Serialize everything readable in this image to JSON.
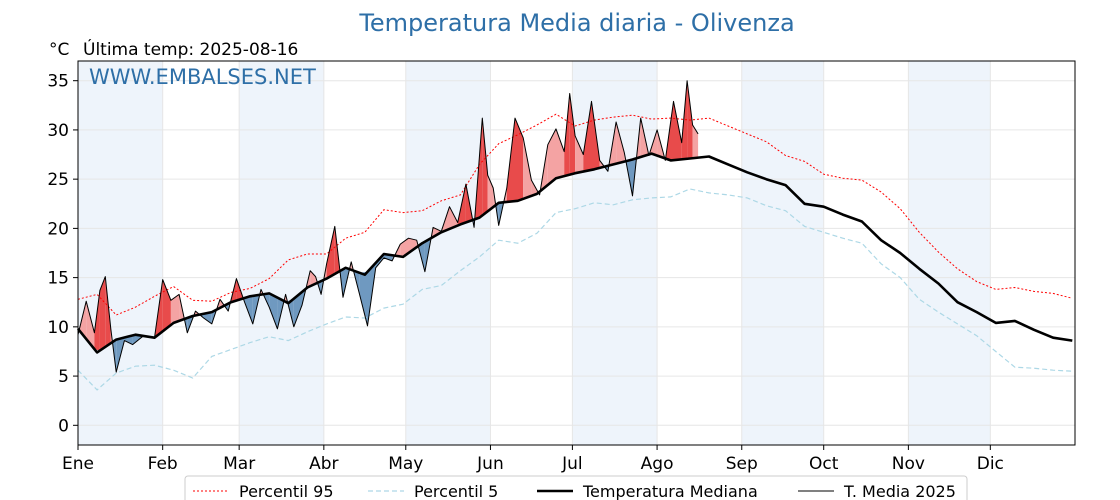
{
  "chart_data": {
    "type": "line",
    "title": "Temperatura Media diaria - Olivenza",
    "unit_label": "°C",
    "last_temp_label": "Última temp: 2025-08-16",
    "watermark": "WWW.EMBALSES.NET",
    "x_tick_labels": [
      "Ene",
      "Feb",
      "Mar",
      "Abr",
      "May",
      "Jun",
      "Jul",
      "Ago",
      "Sep",
      "Oct",
      "Nov",
      "Dic"
    ],
    "x_tick_days": [
      1,
      32,
      60,
      91,
      121,
      152,
      182,
      213,
      244,
      274,
      305,
      335
    ],
    "x_range_days": [
      1,
      366
    ],
    "y_ticks": [
      0,
      5,
      10,
      15,
      20,
      25,
      30,
      35
    ],
    "ylim": [
      -2,
      37
    ],
    "grid": true,
    "shaded_months": [
      "Ene",
      "Mar",
      "May",
      "Jul",
      "Sep",
      "Nov"
    ],
    "legend_position": "bottom",
    "colors": {
      "p95": "#ff0000",
      "p5": "#add8e6",
      "median": "#000000",
      "current": "#000000",
      "above_fill": "#f4a3a3",
      "above_peak_fill": "#e84b4b",
      "below_fill": "#6f99c0",
      "month_band": "#eef4fb",
      "title": "#2e6fa7"
    },
    "series": [
      {
        "name": "Percentil 95",
        "style": "dotted",
        "x": [
          1,
          8,
          15,
          22,
          29,
          36,
          43,
          50,
          57,
          64,
          71,
          78,
          85,
          92,
          99,
          106,
          113,
          120,
          127,
          134,
          141,
          148,
          155,
          162,
          169,
          176,
          183,
          190,
          197,
          204,
          211,
          218,
          225,
          232,
          239,
          246,
          253,
          260,
          267,
          274,
          281,
          288,
          295,
          302,
          309,
          316,
          323,
          330,
          337,
          344,
          351,
          358,
          365
        ],
        "values": [
          12.8,
          13.3,
          11.2,
          12.0,
          13.1,
          14.1,
          12.7,
          12.6,
          13.5,
          13.9,
          14.9,
          16.8,
          17.4,
          17.4,
          19.0,
          19.6,
          21.9,
          21.6,
          21.8,
          22.8,
          23.4,
          26.5,
          28.6,
          29.5,
          30.5,
          31.6,
          30.4,
          31.0,
          31.3,
          31.5,
          31.1,
          31.2,
          31.0,
          31.2,
          30.4,
          29.6,
          28.8,
          27.4,
          26.8,
          25.5,
          25.1,
          24.9,
          23.7,
          22.0,
          19.6,
          17.6,
          15.9,
          14.6,
          13.8,
          14.0,
          13.6,
          13.4,
          12.9
        ]
      },
      {
        "name": "Percentil 5",
        "style": "dashed",
        "x": [
          1,
          8,
          15,
          22,
          29,
          36,
          43,
          50,
          57,
          64,
          71,
          78,
          85,
          92,
          99,
          106,
          113,
          120,
          127,
          134,
          141,
          148,
          155,
          162,
          169,
          176,
          183,
          190,
          197,
          204,
          211,
          218,
          225,
          232,
          239,
          246,
          253,
          260,
          267,
          274,
          281,
          288,
          295,
          302,
          309,
          316,
          323,
          330,
          337,
          344,
          351,
          358,
          365
        ],
        "values": [
          5.6,
          3.6,
          5.3,
          6.0,
          6.1,
          5.6,
          4.8,
          7.0,
          7.7,
          8.4,
          9.0,
          8.6,
          9.5,
          10.3,
          11.0,
          10.9,
          11.9,
          12.3,
          13.8,
          14.2,
          15.7,
          17.1,
          18.8,
          18.5,
          19.5,
          21.6,
          22.0,
          22.6,
          22.4,
          22.9,
          23.1,
          23.2,
          24.0,
          23.6,
          23.4,
          23.1,
          22.3,
          21.8,
          20.2,
          19.6,
          19.0,
          18.5,
          16.4,
          15.0,
          12.8,
          11.5,
          10.3,
          9.1,
          7.5,
          5.9,
          5.8,
          5.6,
          5.5
        ]
      },
      {
        "name": "Temperatura Mediana",
        "style": "bold",
        "x": [
          1,
          8,
          15,
          22,
          29,
          36,
          43,
          50,
          57,
          64,
          71,
          78,
          85,
          92,
          99,
          106,
          113,
          120,
          127,
          134,
          141,
          148,
          155,
          162,
          169,
          176,
          183,
          190,
          197,
          204,
          211,
          218,
          225,
          232,
          239,
          246,
          253,
          260,
          267,
          274,
          281,
          288,
          295,
          302,
          309,
          316,
          323,
          330,
          337,
          344,
          351,
          358,
          365
        ],
        "values": [
          9.8,
          7.4,
          8.7,
          9.2,
          8.9,
          10.4,
          11.1,
          11.5,
          12.5,
          13.1,
          13.4,
          12.4,
          14.0,
          14.9,
          16.0,
          15.3,
          17.4,
          17.1,
          18.5,
          19.6,
          20.4,
          21.1,
          22.6,
          22.8,
          23.5,
          25.1,
          25.6,
          26.0,
          26.5,
          27.0,
          27.6,
          26.9,
          27.1,
          27.3,
          26.5,
          25.7,
          25.0,
          24.4,
          22.5,
          22.2,
          21.4,
          20.7,
          18.8,
          17.5,
          15.9,
          14.4,
          12.5,
          11.5,
          10.4,
          10.6,
          9.7,
          8.9,
          8.6
        ]
      },
      {
        "name": "T. Media 2025",
        "style": "solid",
        "x": [
          1,
          4,
          7,
          9,
          11,
          13,
          15,
          18,
          21,
          25,
          29,
          32,
          35,
          38,
          41,
          44,
          47,
          50,
          53,
          56,
          59,
          62,
          65,
          68,
          71,
          74,
          77,
          80,
          83,
          86,
          88,
          90,
          92,
          95,
          98,
          101,
          104,
          107,
          110,
          113,
          116,
          119,
          122,
          125,
          128,
          131,
          134,
          137,
          140,
          143,
          146,
          149,
          151,
          153,
          155,
          158,
          161,
          164,
          167,
          170,
          173,
          176,
          179,
          181,
          183,
          186,
          189,
          192,
          195,
          198,
          201,
          204,
          207,
          210,
          213,
          216,
          219,
          222,
          224,
          226,
          228
        ],
        "values": [
          9.2,
          12.6,
          9.4,
          13.7,
          15.1,
          9.8,
          5.4,
          8.6,
          8.2,
          9.1,
          8.9,
          14.8,
          12.7,
          13.3,
          9.4,
          11.6,
          10.9,
          10.3,
          12.8,
          11.6,
          14.9,
          12.5,
          10.3,
          13.8,
          12.0,
          9.8,
          13.3,
          10.0,
          12.2,
          15.7,
          15.1,
          13.3,
          16.4,
          20.2,
          13.0,
          16.6,
          13.4,
          10.1,
          16.0,
          17.0,
          16.7,
          18.4,
          19.0,
          18.8,
          15.6,
          20.1,
          19.7,
          22.2,
          20.6,
          24.5,
          20.1,
          31.2,
          25.4,
          24.1,
          20.3,
          24.1,
          31.2,
          29.2,
          24.9,
          23.4,
          28.5,
          30.1,
          27.8,
          33.7,
          29.4,
          27.5,
          32.9,
          26.9,
          25.8,
          30.8,
          27.7,
          23.3,
          31.2,
          27.4,
          30.0,
          26.9,
          32.9,
          28.7,
          35.0,
          30.5,
          29.6
        ]
      }
    ]
  }
}
